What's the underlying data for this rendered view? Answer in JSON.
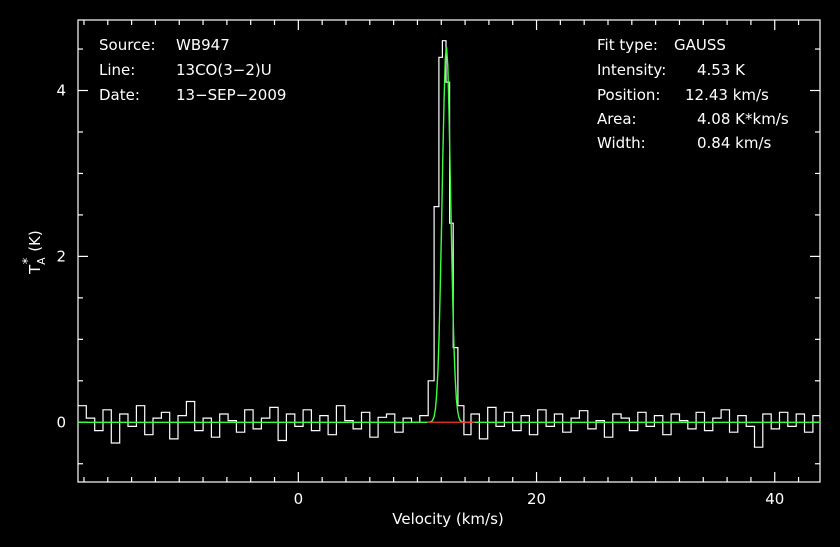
{
  "chart_data": {
    "type": "line",
    "xlabel": "Velocity (km/s)",
    "ylabel_main": "T",
    "ylabel_sub": "A",
    "ylabel_sup": "*",
    "ylabel_unit": "(K)",
    "xlim": [
      -18.5,
      43.8
    ],
    "ylim": [
      -0.72,
      4.85
    ],
    "x_ticks": [
      0,
      20,
      40
    ],
    "x_tick_labels": [
      "0",
      "20",
      "40"
    ],
    "y_ticks": [
      0,
      2,
      4
    ],
    "y_tick_labels": [
      "0",
      "2",
      "4"
    ],
    "series": [
      {
        "role": "spectrum",
        "x": [
          -18.5,
          -17.8,
          -17.1,
          -16.4,
          -15.7,
          -15,
          -14.3,
          -13.6,
          -12.9,
          -12.2,
          -11.5,
          -10.8,
          -10.1,
          -9.4,
          -8.7,
          -8,
          -7.3,
          -6.6,
          -5.9,
          -5.2,
          -4.5,
          -3.8,
          -3.1,
          -2.4,
          -1.7,
          -1,
          -0.3,
          0.4,
          1.1,
          1.8,
          2.5,
          3.2,
          3.9,
          4.6,
          5.3,
          6,
          6.7,
          7.4,
          8.1,
          8.8,
          9.5,
          10.2,
          10.9,
          11.4,
          11.8,
          12.1,
          12.4,
          12.7,
          13,
          13.4,
          13.9,
          14.5,
          15.2,
          15.9,
          16.6,
          17.3,
          18,
          18.7,
          19.4,
          20.1,
          20.8,
          21.5,
          22.2,
          22.9,
          23.6,
          24.3,
          25,
          25.7,
          26.4,
          27.1,
          27.8,
          28.5,
          29.2,
          29.9,
          30.6,
          31.3,
          32,
          32.7,
          33.4,
          34.1,
          34.8,
          35.5,
          36.2,
          36.9,
          37.6,
          38.3,
          39,
          39.7,
          40.4,
          41.1,
          41.8,
          42.5,
          43.2,
          43.8
        ],
        "y": [
          0.2,
          0.05,
          -0.1,
          0.15,
          -0.25,
          0.1,
          -0.05,
          0.2,
          -0.15,
          0.05,
          0.12,
          -0.2,
          0.08,
          0.25,
          -0.1,
          0.05,
          -0.18,
          0.1,
          0.02,
          -0.12,
          0.15,
          -0.08,
          0.05,
          0.18,
          -0.22,
          0.1,
          -0.05,
          0.15,
          -0.1,
          0.08,
          -0.15,
          0.2,
          0.02,
          -0.08,
          0.12,
          -0.18,
          0.06,
          0.1,
          -0.12,
          0.05,
          0.0,
          0.08,
          0.5,
          2.6,
          4.4,
          4.6,
          4.1,
          2.4,
          0.9,
          0.2,
          -0.15,
          0.1,
          -0.2,
          0.18,
          -0.05,
          0.12,
          -0.1,
          0.08,
          -0.15,
          0.15,
          -0.05,
          0.1,
          -0.12,
          0.05,
          0.14,
          -0.08,
          0.02,
          -0.18,
          0.1,
          0.05,
          -0.1,
          0.12,
          -0.05,
          0.08,
          -0.15,
          0.1,
          0.02,
          -0.08,
          0.12,
          -0.1,
          0.05,
          0.15,
          -0.12,
          0.08,
          -0.05,
          -0.3,
          0.1,
          -0.08,
          0.12,
          -0.05,
          0.1,
          -0.12,
          0.08,
          0.05
        ]
      },
      {
        "role": "gaussian-fit",
        "type": "gaussian",
        "amplitude": 4.53,
        "center": 12.43,
        "fwhm": 0.84
      },
      {
        "role": "baseline",
        "x": [
          10.8,
          14.8
        ],
        "y": [
          0,
          0
        ]
      }
    ]
  },
  "info_left": {
    "rows": [
      {
        "label": "Source:",
        "value": "WB947"
      },
      {
        "label": "Line:",
        "value": "13CO(3−2)U"
      },
      {
        "label": "Date:",
        "value": "13−SEP−2009"
      }
    ]
  },
  "info_right": {
    "rows": [
      {
        "label": "Fit type:",
        "value": "GAUSS"
      },
      {
        "label": "Intensity:",
        "value": "4.53 K"
      },
      {
        "label": "Position:",
        "value": "12.43 km/s"
      },
      {
        "label": "Area:",
        "value": "4.08 K*km/s"
      },
      {
        "label": "Width:",
        "value": "0.84 km/s"
      }
    ]
  },
  "colors": {
    "background": "#000000",
    "axes": "#ffffff",
    "spectrum": "#ffffff",
    "fit": "#3cff3c",
    "baseline": "#ff3030"
  }
}
